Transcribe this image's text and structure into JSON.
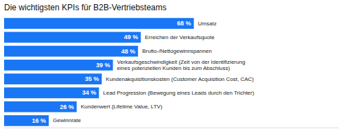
{
  "chart_data": {
    "type": "bar",
    "orientation": "horizontal",
    "title": "Die wichtigsten KPIs für B2B-Vertriebsteams",
    "categories": [
      "Umsatz",
      "Erreichen der Verkaufsquote",
      "Brutto-/Nettogewinnspannen",
      "Verkaufsgeschwindigkeit (Zeit von der Identifizierung\neines potenziellen Kunden bis zum Abschluss)",
      "Kundenakquisitionskosten (Customer Acquisition Cost, CAC)",
      "Lead Progression (Bewegung eines Leads durch den Trichter)",
      "Kundenwert (Lifetime Value, LTV)",
      "Gewinnrate"
    ],
    "values": [
      68,
      49,
      48,
      39,
      35,
      34,
      26,
      16
    ],
    "value_labels": [
      "68 %",
      "49 %",
      "48 %",
      "39 %",
      "35 %",
      "34 %",
      "26 %",
      "16 %"
    ],
    "data_labels": true,
    "color": "#1976f5",
    "xlim": [
      0,
      120
    ],
    "tick_labels": false,
    "grid": false
  }
}
